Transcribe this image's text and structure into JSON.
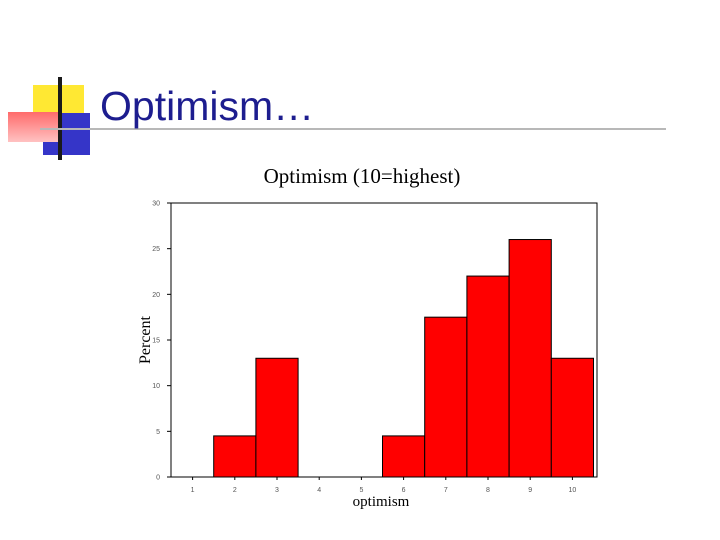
{
  "slide": {
    "title": "Optimism…"
  },
  "theme": {
    "title_color": "#1d1d8f",
    "bar_color": "#ff0000",
    "accent_yellow": "#FFE833",
    "accent_blue": "#3535C8",
    "accent_pink": "#ff6b6b"
  },
  "chart_data": {
    "type": "bar",
    "title": "Optimism (10=highest)",
    "xlabel": "optimism",
    "ylabel": "Percent",
    "categories": [
      "1",
      "2",
      "3",
      "4",
      "5",
      "6",
      "7",
      "8",
      "9",
      "10"
    ],
    "values": [
      0,
      4.5,
      13,
      0,
      0,
      4.5,
      17.5,
      22,
      26,
      13
    ],
    "ylim": [
      0,
      30
    ],
    "y_ticks": [
      0,
      5,
      10,
      15,
      20,
      25,
      30
    ],
    "grid": false,
    "legend": "none"
  }
}
